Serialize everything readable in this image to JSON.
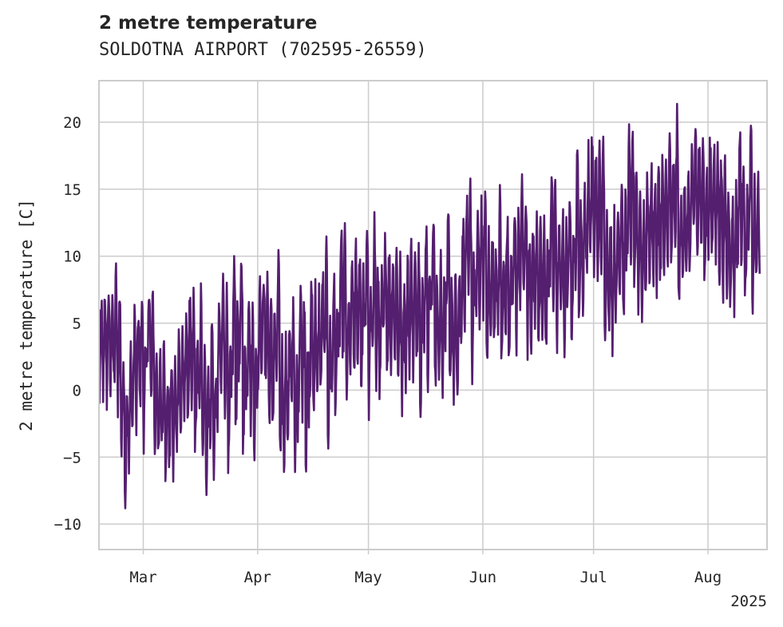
{
  "chart_data": {
    "type": "line",
    "title": "2 metre temperature",
    "subtitle": "SOLDOTNA AIRPORT (702595-26559)",
    "xlabel": "",
    "ylabel": "2 metre temperature [C]",
    "x_ticks": [
      "Mar",
      "Apr",
      "May",
      "Jun",
      "Jul",
      "Aug"
    ],
    "x_year_label": "2025",
    "y_ticks": [
      -10,
      -5,
      0,
      5,
      10,
      15,
      20
    ],
    "ylim": [
      -11.9,
      23.1
    ],
    "xlim": [
      "2025-02-17",
      "2025-08-17"
    ],
    "grid": true,
    "colors": {
      "line": "#551f70",
      "grid": "#cccccc",
      "axes": "#cccccc"
    },
    "series": [
      {
        "x_start": "2025-02-17",
        "x_end": "2025-08-15",
        "step_hours": 3,
        "daily_trend": [
          {
            "x": "2025-02-17",
            "y": 1.5
          },
          {
            "x": "2025-02-22",
            "y": 1.0
          },
          {
            "x": "2025-02-26",
            "y": -2.0
          },
          {
            "x": "2025-03-02",
            "y": 2.5
          },
          {
            "x": "2025-03-07",
            "y": 0.0
          },
          {
            "x": "2025-03-12",
            "y": -1.0
          },
          {
            "x": "2025-03-18",
            "y": -0.5
          },
          {
            "x": "2025-03-24",
            "y": 1.5
          },
          {
            "x": "2025-03-30",
            "y": 3.5
          },
          {
            "x": "2025-04-05",
            "y": 2.0
          },
          {
            "x": "2025-04-12",
            "y": 1.0
          },
          {
            "x": "2025-04-20",
            "y": 3.0
          },
          {
            "x": "2025-04-28",
            "y": 5.0
          },
          {
            "x": "2025-05-06",
            "y": 6.0
          },
          {
            "x": "2025-05-15",
            "y": 7.0
          },
          {
            "x": "2025-05-25",
            "y": 7.5
          },
          {
            "x": "2025-06-05",
            "y": 7.5
          },
          {
            "x": "2025-06-15",
            "y": 9.0
          },
          {
            "x": "2025-06-25",
            "y": 11.0
          },
          {
            "x": "2025-07-05",
            "y": 11.5
          },
          {
            "x": "2025-07-15",
            "y": 12.5
          },
          {
            "x": "2025-07-25",
            "y": 13.5
          },
          {
            "x": "2025-08-05",
            "y": 13.5
          },
          {
            "x": "2025-08-15",
            "y": 13.0
          }
        ],
        "diurnal_amplitude": 4.0,
        "min": -10.0,
        "max": 21.7
      }
    ]
  }
}
